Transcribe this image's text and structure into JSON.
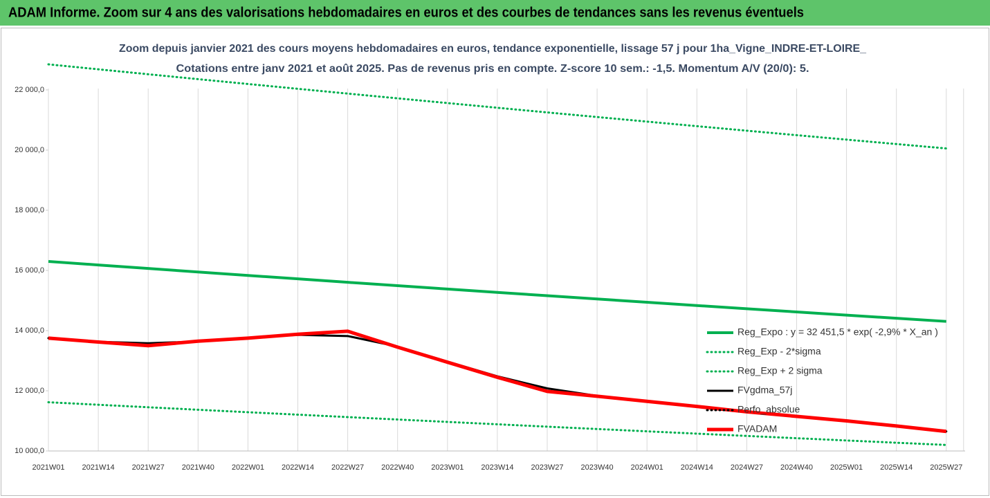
{
  "chart_data": {
    "type": "line",
    "title": "ADAM Informe. Zoom sur 4 ans des valorisations hebdomadaires en euros et des courbes de tendances sans les revenus éventuels",
    "subtitle": [
      "Zoom depuis janvier 2021 des cours moyens hebdomadaires en euros, tendance exponentielle, lissage 57 j pour 1ha_Vigne_INDRE-ET-LOIRE_",
      "Cotations entre janv 2021 et août 2025.  Pas de revenus pris en compte. Z-score 10 sem.: -1,5. Momentum A/V (20/0): 5."
    ],
    "categories": [
      "2021W01",
      "2021W14",
      "2021W27",
      "2021W40",
      "2022W01",
      "2022W14",
      "2022W27",
      "2022W40",
      "2023W01",
      "2023W14",
      "2023W27",
      "2023W40",
      "2024W01",
      "2024W14",
      "2024W27",
      "2024W40",
      "2025W01",
      "2025W14",
      "2025W27"
    ],
    "ylim": [
      10000,
      22000
    ],
    "yticks": [
      {
        "value": 10000,
        "label": "10 000,0"
      },
      {
        "value": 12000,
        "label": "12 000,0"
      },
      {
        "value": 14000,
        "label": "14 000,0"
      },
      {
        "value": 16000,
        "label": "16 000,0"
      },
      {
        "value": 18000,
        "label": "18 000,0"
      },
      {
        "value": 20000,
        "label": "20 000,0"
      },
      {
        "value": 22000,
        "label": "22 000,0"
      }
    ],
    "grid": "x",
    "legend": "right",
    "series": [
      {
        "name": "Reg_Expo : y = 32 451,5 * exp( -2,9% *  X_an )",
        "color": "#00b050",
        "style": "solid",
        "values": [
          16300,
          16182,
          16065,
          15949,
          15834,
          15720,
          15606,
          15494,
          15382,
          15271,
          15160,
          15051,
          14942,
          14834,
          14727,
          14621,
          14515,
          14410,
          14306
        ]
      },
      {
        "name": "Reg_Exp - 2*sigma",
        "color": "#00b050",
        "style": "dotted",
        "values": [
          11620,
          11536,
          11453,
          11370,
          11288,
          11207,
          11126,
          11046,
          10966,
          10887,
          10808,
          10730,
          10653,
          10576,
          10500,
          10424,
          10349,
          10274,
          10200
        ]
      },
      {
        "name": "Reg_Exp + 2 sigma",
        "color": "#00b050",
        "style": "dotted",
        "values": [
          22850,
          22685,
          22521,
          22358,
          22197,
          22037,
          21878,
          21720,
          21563,
          21407,
          21252,
          21099,
          20947,
          20795,
          20645,
          20496,
          20348,
          20201,
          20055
        ]
      },
      {
        "name": "FVgdma_57j",
        "color": "#000000",
        "style": "solid",
        "values": [
          13750,
          13630,
          13580,
          13640,
          13760,
          13860,
          13820,
          13470,
          12970,
          12480,
          12080,
          11830,
          11650,
          11480,
          11300,
          11150,
          11000,
          10830,
          10660
        ]
      },
      {
        "name": "Perfo_absolue",
        "color": "#000000",
        "style": "dotted",
        "values": [
          13750,
          13620,
          13500,
          13650,
          13750,
          13880,
          13980,
          13450,
          12950,
          12450,
          11980,
          11820,
          11650,
          11480,
          11300,
          11150,
          11000,
          10830,
          10650
        ]
      },
      {
        "name": "FVADAM",
        "color": "#ff0000",
        "style": "thick",
        "values": [
          13750,
          13620,
          13500,
          13650,
          13750,
          13880,
          13980,
          13450,
          12950,
          12450,
          11980,
          11820,
          11650,
          11480,
          11300,
          11150,
          11000,
          10830,
          10650
        ]
      }
    ]
  }
}
